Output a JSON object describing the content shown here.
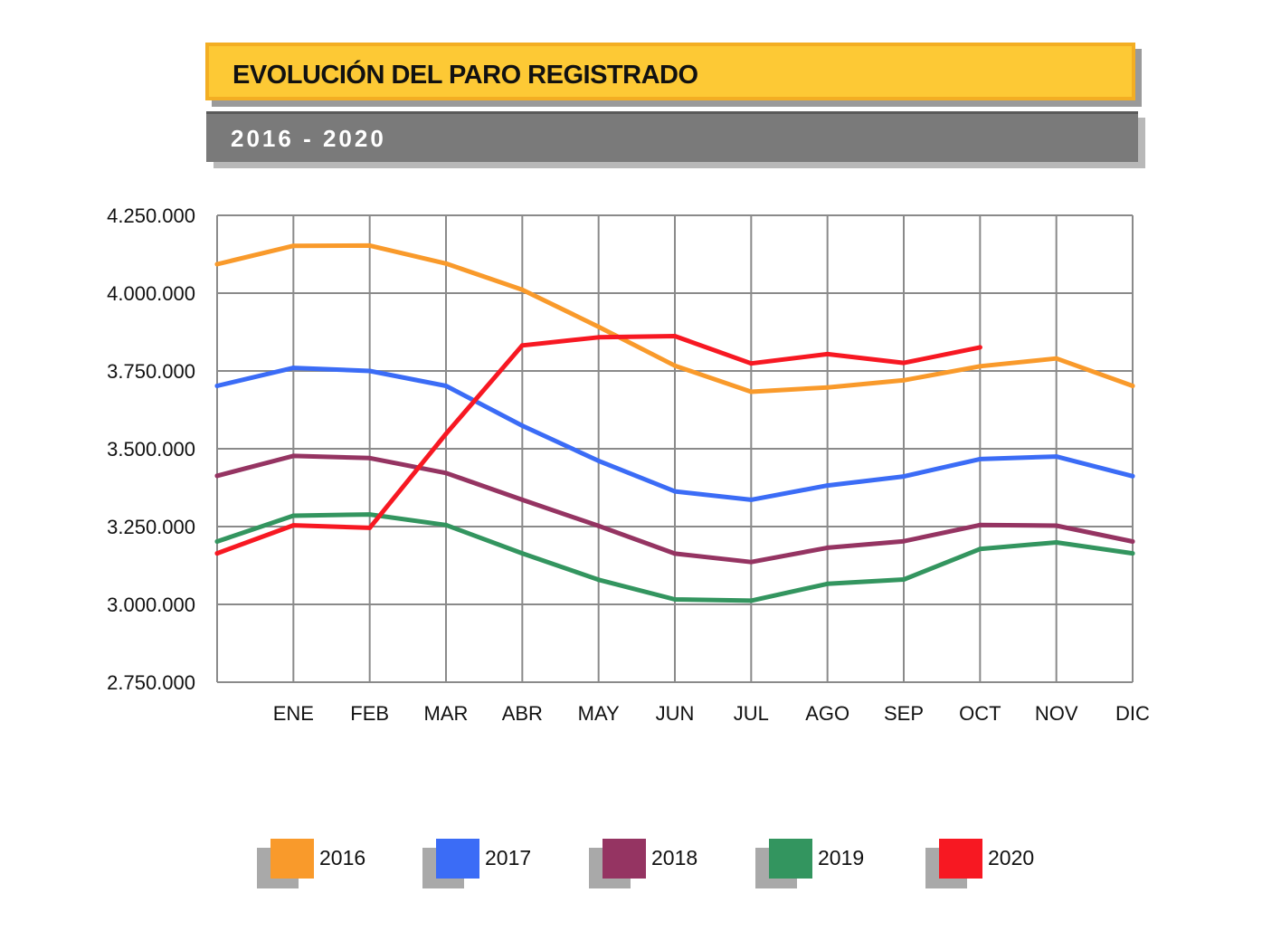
{
  "header": {
    "title": "EVOLUCIÓN DEL PARO REGISTRADO",
    "subtitle": "2016 - 2020"
  },
  "chart_data": {
    "type": "line",
    "title": "EVOLUCIÓN DEL PARO REGISTRADO",
    "subtitle": "2016 - 2020",
    "xlabel": "",
    "ylabel": "",
    "categories": [
      "",
      "ENE",
      "FEB",
      "MAR",
      "ABR",
      "MAY",
      "JUN",
      "JUL",
      "AGO",
      "SEP",
      "OCT",
      "NOV",
      "DIC"
    ],
    "ylim": [
      2750000,
      4250000
    ],
    "yticks": [
      2750000,
      3000000,
      3250000,
      3500000,
      3750000,
      4000000,
      4250000
    ],
    "ytick_labels": [
      "2.750.000",
      "3.000.000",
      "3.250.000",
      "3.500.000",
      "3.750.000",
      "4.000.000",
      "4.250.000"
    ],
    "grid": true,
    "legend_position": "bottom",
    "series": [
      {
        "name": "2016",
        "color": "#f99a2b",
        "values": [
          4093000,
          4152000,
          4153000,
          4095000,
          4011000,
          3892000,
          3767000,
          3683000,
          3697000,
          3720000,
          3765000,
          3790000,
          3702000
        ]
      },
      {
        "name": "2017",
        "color": "#3b6cf6",
        "values": [
          3702000,
          3760000,
          3750000,
          3702000,
          3574000,
          3461000,
          3363000,
          3336000,
          3382000,
          3411000,
          3467000,
          3475000,
          3412000
        ]
      },
      {
        "name": "2018",
        "color": "#953462",
        "values": [
          3413000,
          3477000,
          3470000,
          3422000,
          3336000,
          3252000,
          3163000,
          3136000,
          3182000,
          3203000,
          3255000,
          3253000,
          3202000
        ]
      },
      {
        "name": "2019",
        "color": "#33955f",
        "values": [
          3202000,
          3285000,
          3289000,
          3255000,
          3164000,
          3079000,
          3016000,
          3012000,
          3066000,
          3080000,
          3178000,
          3199000,
          3164000
        ]
      },
      {
        "name": "2020",
        "color": "#f71822",
        "values": [
          3164000,
          3254000,
          3246000,
          3548000,
          3832000,
          3858000,
          3862000,
          3774000,
          3804000,
          3776000,
          3826000,
          null,
          null
        ]
      }
    ]
  }
}
